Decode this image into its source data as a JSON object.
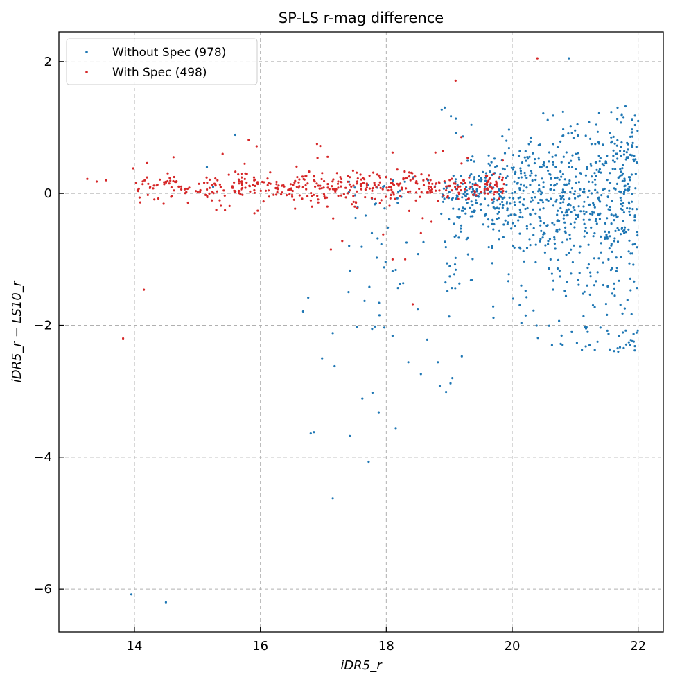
{
  "chart_data": {
    "type": "scatter",
    "title": "SP-LS r-mag difference",
    "xlabel": "iDR5_r",
    "ylabel": "iDR5_r − LS10_r",
    "xlim": [
      12.8,
      22.4
    ],
    "ylim": [
      -6.65,
      2.45
    ],
    "xticks": [
      14,
      16,
      18,
      20,
      22
    ],
    "yticks": [
      2,
      0,
      -2,
      -4,
      -6
    ],
    "xtick_labels": [
      "14",
      "16",
      "18",
      "20",
      "22"
    ],
    "ytick_labels": [
      "2",
      "0",
      "−2",
      "−4",
      "−6"
    ],
    "grid": true,
    "legend_position": "top-left",
    "series": [
      {
        "name": "Without Spec (978)",
        "color": "#1f77b4",
        "outliers": [
          [
            13.95,
            -6.08
          ],
          [
            14.5,
            -6.2
          ],
          [
            17.15,
            -4.62
          ],
          [
            17.72,
            -4.07
          ],
          [
            17.42,
            -3.68
          ],
          [
            16.8,
            -3.64
          ],
          [
            16.85,
            -3.62
          ],
          [
            18.15,
            -3.56
          ],
          [
            17.88,
            -3.32
          ],
          [
            17.62,
            -3.11
          ],
          [
            17.78,
            -3.02
          ],
          [
            18.95,
            -3.01
          ],
          [
            18.85,
            -2.92
          ],
          [
            19.02,
            -2.88
          ],
          [
            19.05,
            -2.8
          ],
          [
            18.55,
            -2.74
          ],
          [
            18.35,
            -2.56
          ],
          [
            18.82,
            -2.56
          ],
          [
            16.98,
            -2.5
          ],
          [
            19.2,
            -2.47
          ],
          [
            17.18,
            -2.62
          ],
          [
            18.65,
            -2.22
          ],
          [
            17.15,
            -2.12
          ],
          [
            17.82,
            -2.02
          ],
          [
            18.1,
            -2.16
          ],
          [
            16.68,
            -1.79
          ],
          [
            16.76,
            -1.58
          ],
          [
            17.42,
            -1.17
          ],
          [
            18.1,
            -1.18
          ],
          [
            18.15,
            -1.16
          ],
          [
            15.15,
            0.4
          ],
          [
            15.6,
            0.89
          ],
          [
            18.88,
            1.27
          ],
          [
            20.9,
            2.05
          ],
          [
            21.8,
            1.32
          ],
          [
            20.65,
            1.18
          ],
          [
            22.0,
            1.1
          ],
          [
            21.95,
            1.18
          ],
          [
            17.95,
            0.1
          ],
          [
            15.25,
            0.1
          ]
        ]
      },
      {
        "name": "With Spec (498)",
        "color": "#d62728",
        "outliers": [
          [
            13.82,
            -2.2
          ],
          [
            14.15,
            -1.46
          ],
          [
            20.4,
            2.05
          ],
          [
            19.1,
            1.71
          ],
          [
            16.9,
            0.75
          ],
          [
            17.12,
            -0.85
          ],
          [
            17.3,
            -0.72
          ],
          [
            18.1,
            -1.0
          ],
          [
            18.3,
            -1.0
          ],
          [
            18.42,
            -1.68
          ],
          [
            18.55,
            -0.6
          ],
          [
            17.95,
            -0.62
          ],
          [
            16.82,
            -0.2
          ],
          [
            16.95,
            0.72
          ],
          [
            18.78,
            0.62
          ],
          [
            19.85,
            0.5
          ],
          [
            18.1,
            0.62
          ],
          [
            13.25,
            0.22
          ],
          [
            13.4,
            0.18
          ],
          [
            13.55,
            0.2
          ],
          [
            13.98,
            0.38
          ],
          [
            14.2,
            0.46
          ],
          [
            14.62,
            0.55
          ],
          [
            15.4,
            0.6
          ],
          [
            15.75,
            0.45
          ],
          [
            14.85,
            -0.14
          ],
          [
            15.3,
            -0.25
          ],
          [
            16.05,
            -0.12
          ],
          [
            17.5,
            -0.2
          ],
          [
            17.9,
            -0.15
          ]
        ]
      }
    ]
  }
}
